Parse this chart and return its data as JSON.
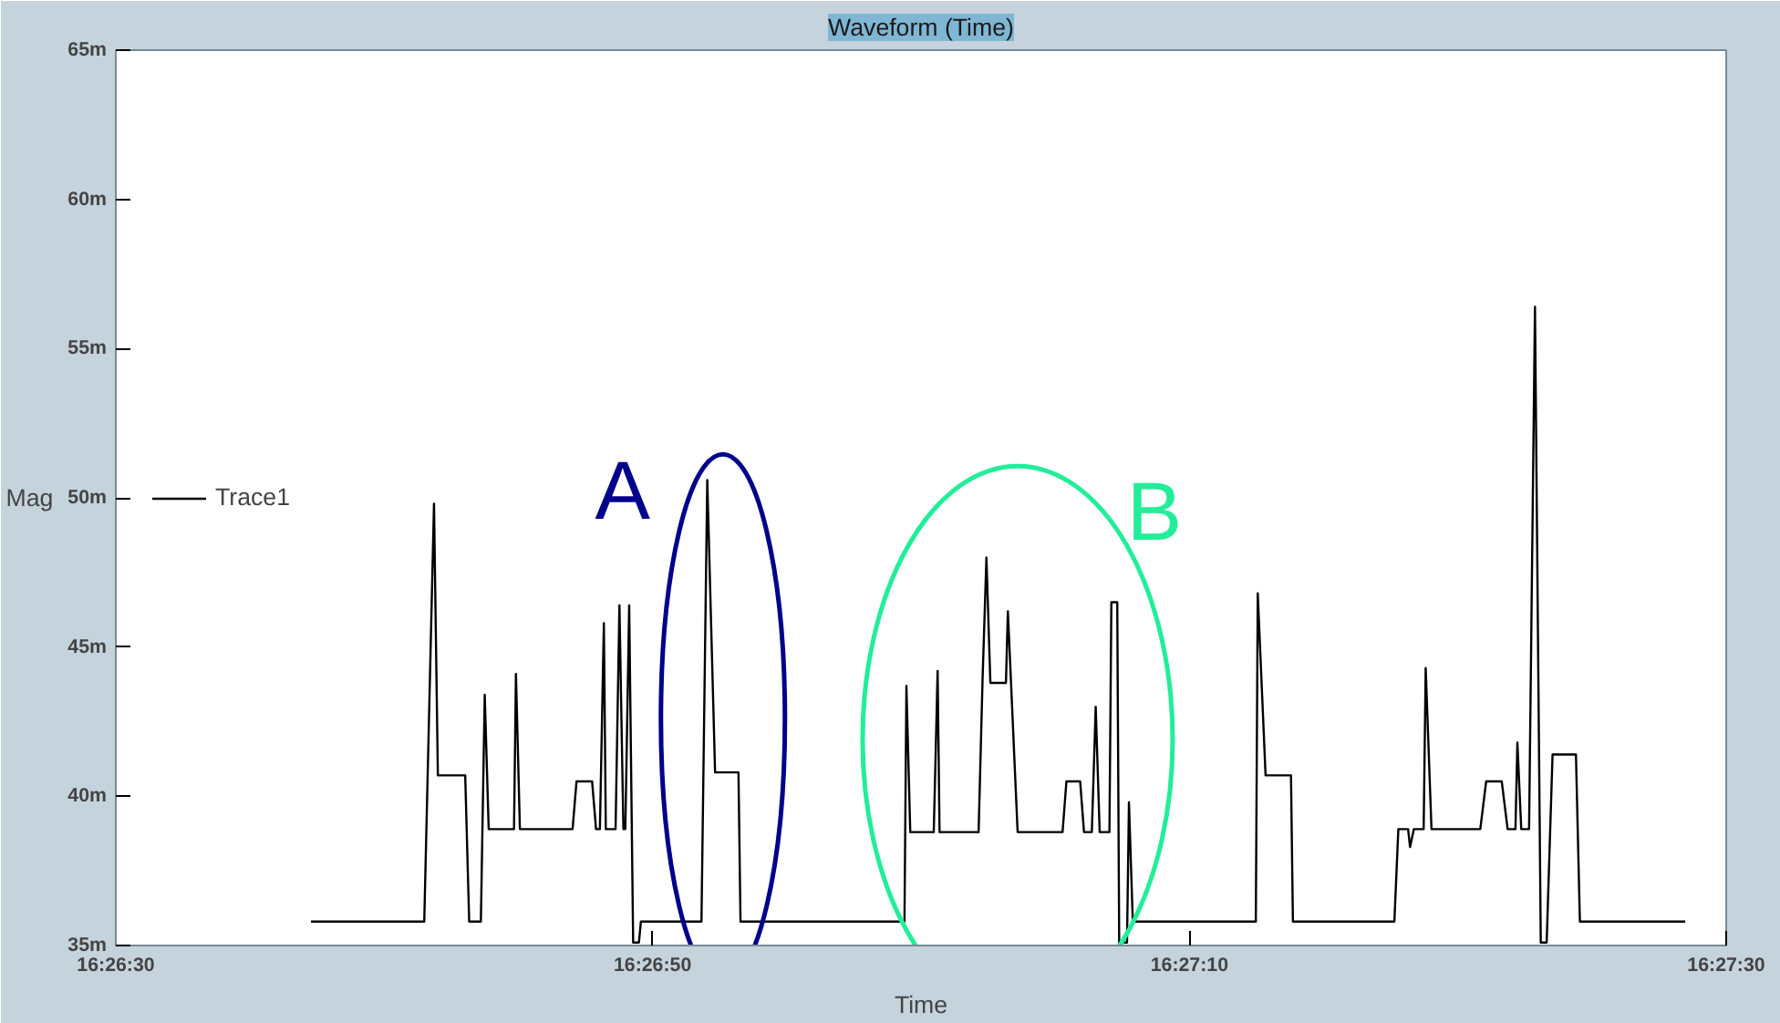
{
  "chart_data": {
    "type": "line",
    "title": "Waveform (Time)",
    "xlabel": "Time",
    "ylabel": "Mag",
    "x": [
      16.443687,
      16.444859,
      16.44496,
      16.445,
      16.445283,
      16.445324,
      16.445445,
      16.445485,
      16.445526,
      16.445788,
      16.445808,
      16.445849,
      16.446394,
      16.446435,
      16.446596,
      16.446637,
      16.446677,
      16.446718,
      16.446738,
      16.446839,
      16.446879,
      16.44692,
      16.44694,
      16.44698,
      16.447021,
      16.447081,
      16.447101,
      16.447728,
      16.447788,
      16.447869,
      16.448111,
      16.448132,
      16.449829,
      16.449849,
      16.449889,
      16.450132,
      16.450172,
      16.450192,
      16.450596,
      16.450637,
      16.450677,
      16.450718,
      16.450879,
      16.450899,
      16.451,
      16.451465,
      16.451505,
      16.451647,
      16.451687,
      16.451768,
      16.451808,
      16.451849,
      16.45195,
      16.45197,
      16.452031,
      16.452051,
      16.452132,
      16.452152,
      16.452192,
      16.453465,
      16.453485,
      16.453566,
      16.453829,
      16.453849,
      16.454899,
      16.45494,
      16.455041,
      16.455061,
      16.455101,
      16.455202,
      16.455223,
      16.455283,
      16.455788,
      16.455849,
      16.45601,
      16.456071,
      16.456152,
      16.456172,
      16.456212,
      16.456293,
      16.456354,
      16.456414,
      16.456475,
      16.456536,
      16.456778,
      16.456819,
      16.457909
    ],
    "series": [
      {
        "name": "Trace1",
        "color": "#000000",
        "values": [
          35.8,
          35.8,
          49.8,
          40.7,
          40.7,
          35.8,
          35.8,
          43.4,
          38.9,
          38.9,
          44.1,
          38.9,
          38.9,
          40.5,
          40.5,
          38.9,
          38.9,
          45.8,
          38.9,
          38.9,
          46.4,
          38.9,
          38.9,
          46.4,
          35.1,
          35.1,
          35.8,
          35.8,
          50.6,
          40.8,
          40.8,
          35.8,
          35.8,
          43.7,
          38.8,
          38.8,
          44.2,
          38.8,
          38.8,
          43.9,
          48.0,
          43.8,
          43.8,
          46.2,
          38.8,
          38.8,
          40.5,
          40.5,
          38.8,
          38.8,
          43.0,
          38.8,
          38.8,
          46.5,
          46.5,
          35.1,
          35.1,
          39.8,
          35.8,
          35.8,
          46.8,
          40.7,
          40.7,
          35.8,
          35.8,
          38.9,
          38.9,
          38.3,
          38.9,
          38.9,
          44.3,
          38.9,
          38.9,
          40.5,
          40.5,
          38.9,
          38.9,
          41.8,
          38.9,
          38.9,
          56.4,
          35.1,
          35.1,
          41.4,
          41.4,
          35.8,
          35.8
        ]
      }
    ],
    "xlim": [
      16.441667,
      16.458333
    ],
    "xticks": [
      {
        "value": 16.441667,
        "label": "16:26:30"
      },
      {
        "value": 16.447222,
        "label": "16:26:50"
      },
      {
        "value": 16.452778,
        "label": "16:27:10"
      },
      {
        "value": 16.458333,
        "label": "16:27:30"
      }
    ],
    "ylim": [
      35,
      65
    ],
    "yticks": [
      {
        "value": 35,
        "label": "35m"
      },
      {
        "value": 40,
        "label": "40m"
      },
      {
        "value": 45,
        "label": "45m"
      },
      {
        "value": 50,
        "label": "50m"
      },
      {
        "value": 55,
        "label": "55m"
      },
      {
        "value": 60,
        "label": "60m"
      },
      {
        "value": 65,
        "label": "65m"
      }
    ],
    "annotations": [
      {
        "text": "A",
        "x": 16.44795,
        "y": 42.6
      },
      {
        "text": "B",
        "x": 16.451,
        "y": 41.9
      }
    ],
    "grid": false,
    "legend": "left",
    "marker": "none",
    "line_style": "solid"
  }
}
